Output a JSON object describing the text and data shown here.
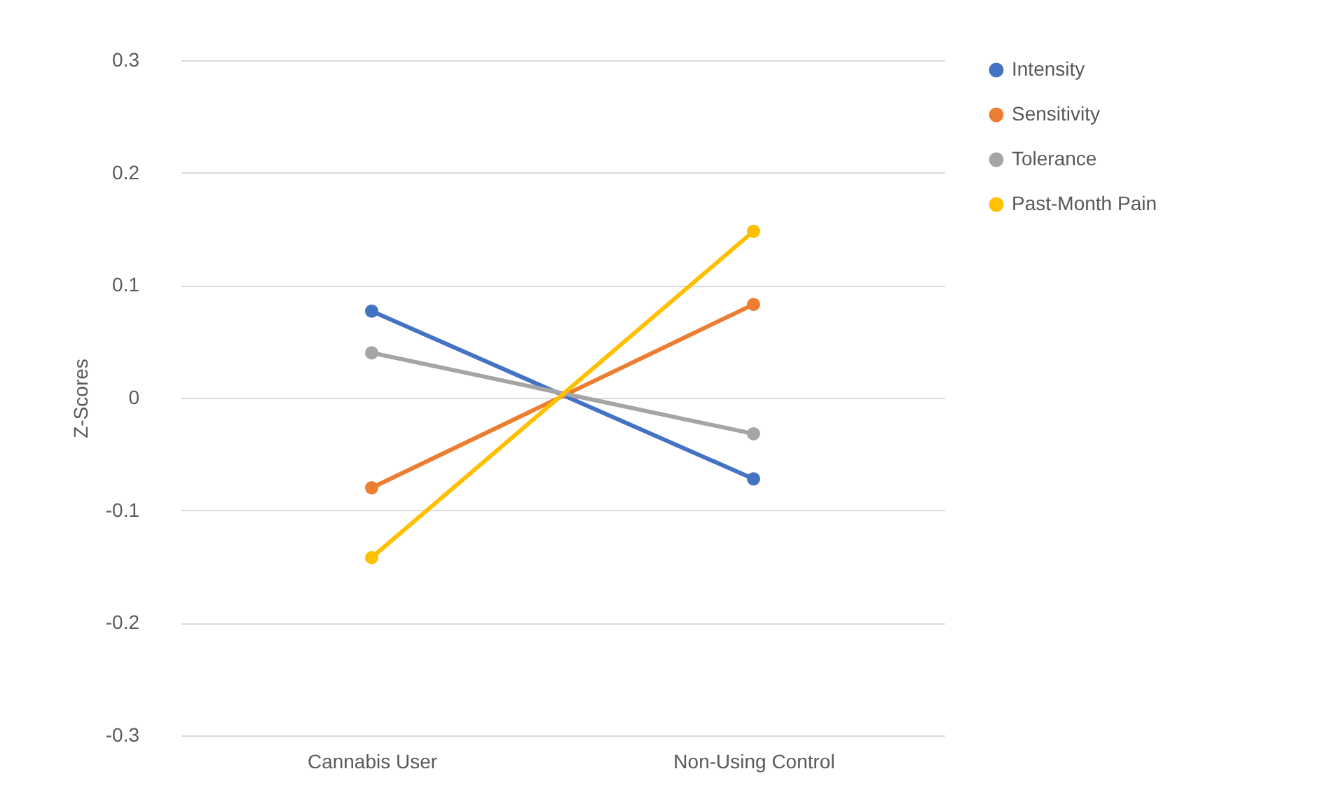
{
  "chart_data": {
    "type": "line",
    "ylabel": "Z-Scores",
    "categories": [
      "Cannabis User",
      "Non-Using Control"
    ],
    "series": [
      {
        "name": "Intensity",
        "color": "#4472c4",
        "values": [
          0.077,
          -0.072
        ]
      },
      {
        "name": "Sensitivity",
        "color": "#ed7d31",
        "values": [
          -0.08,
          0.083
        ]
      },
      {
        "name": "Tolerance",
        "color": "#a5a5a5",
        "values": [
          0.04,
          -0.032
        ]
      },
      {
        "name": "Past-Month Pain",
        "color": "#ffc000",
        "values": [
          -0.142,
          0.148
        ]
      }
    ],
    "ylim": [
      -0.3,
      0.3
    ],
    "yticks": [
      -0.3,
      -0.2,
      -0.1,
      0,
      0.1,
      0.2,
      0.3
    ],
    "grid": "y",
    "legend": "right",
    "marker": "circle",
    "line_style": "solid"
  }
}
